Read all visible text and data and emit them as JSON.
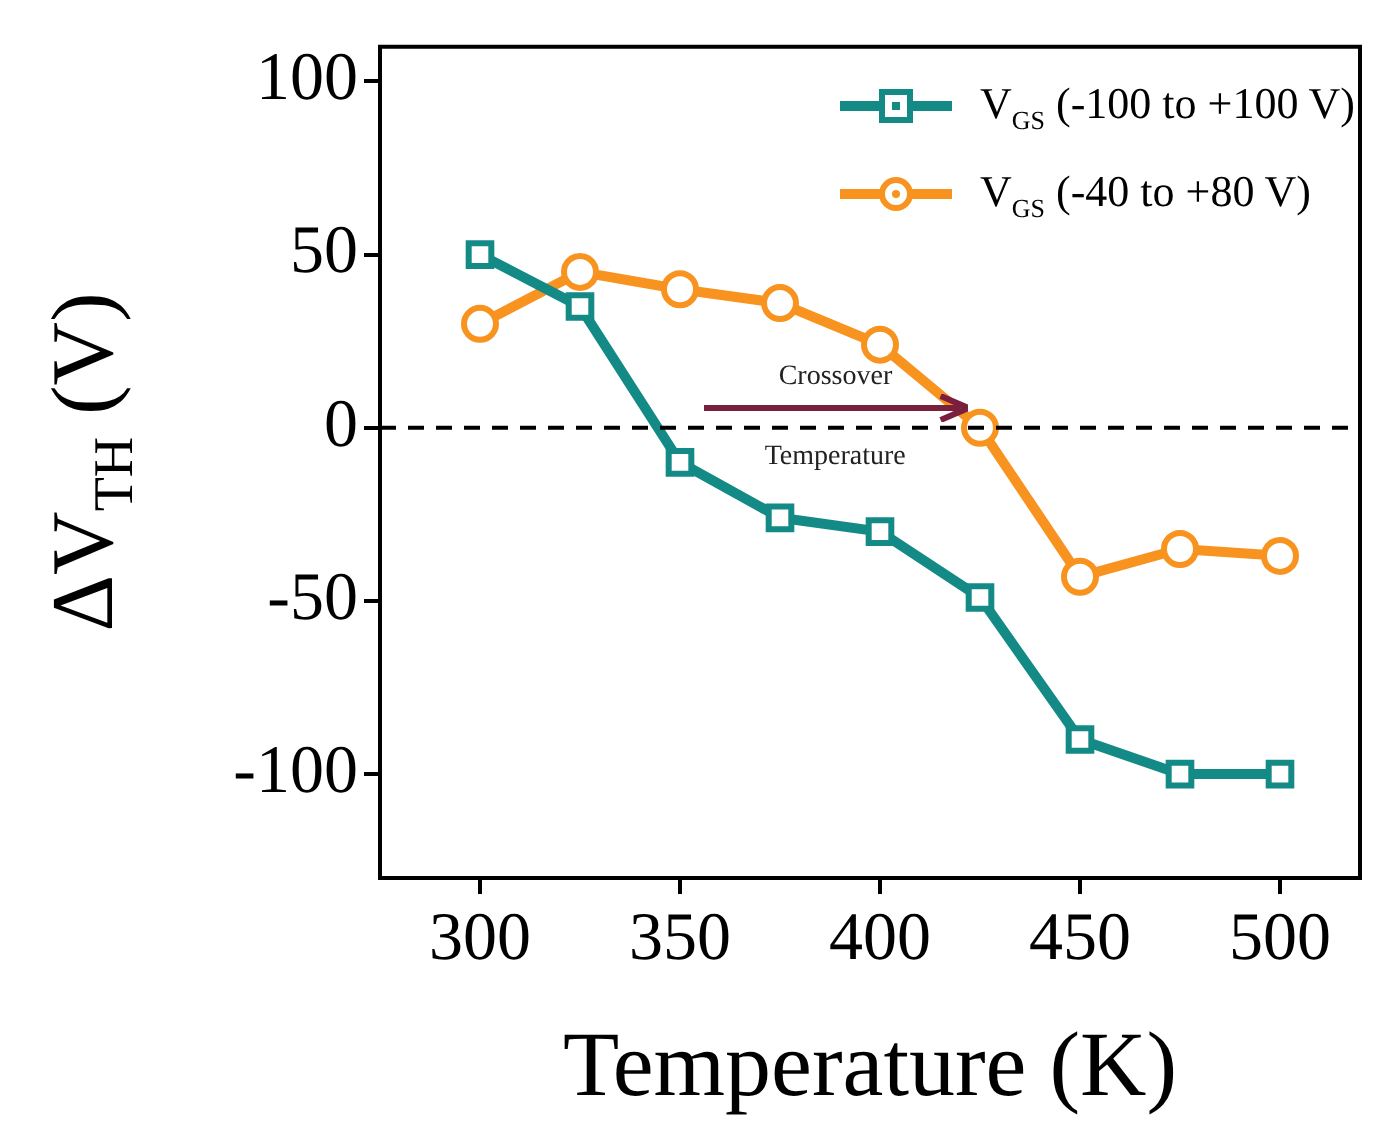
{
  "chart_data": {
    "type": "line",
    "xlabel": "Temperature (K)",
    "ylabel": "ΔV$_{TH}$ (V)",
    "x": [
      300,
      325,
      350,
      375,
      400,
      425,
      450,
      475,
      500
    ],
    "series": [
      {
        "name": "V$_{GS}$ (-100 to +100 V)",
        "color": "#138a85",
        "marker": "square",
        "values": [
          50,
          35,
          -10,
          -26,
          -30,
          -49,
          -90,
          -100,
          -100
        ]
      },
      {
        "name": "V$_{GS}$ (-40 to +80 V)",
        "color": "#f7931e",
        "marker": "circle",
        "values": [
          30,
          45,
          40,
          36,
          24,
          0,
          -43,
          -35,
          -37
        ]
      }
    ],
    "xlim": [
      275,
      520
    ],
    "xticks": [
      300,
      350,
      400,
      450,
      500
    ],
    "ylim": [
      -130,
      110
    ],
    "yticks": [
      -100,
      -50,
      0,
      50,
      100
    ],
    "ref_lines": [
      {
        "axis": "y",
        "value": 0,
        "color": "#000000",
        "line_style": "dashed"
      }
    ],
    "annotations": [
      "Crossover Temperature"
    ],
    "grid": false,
    "legend": "top right",
    "line_style": "solid"
  }
}
